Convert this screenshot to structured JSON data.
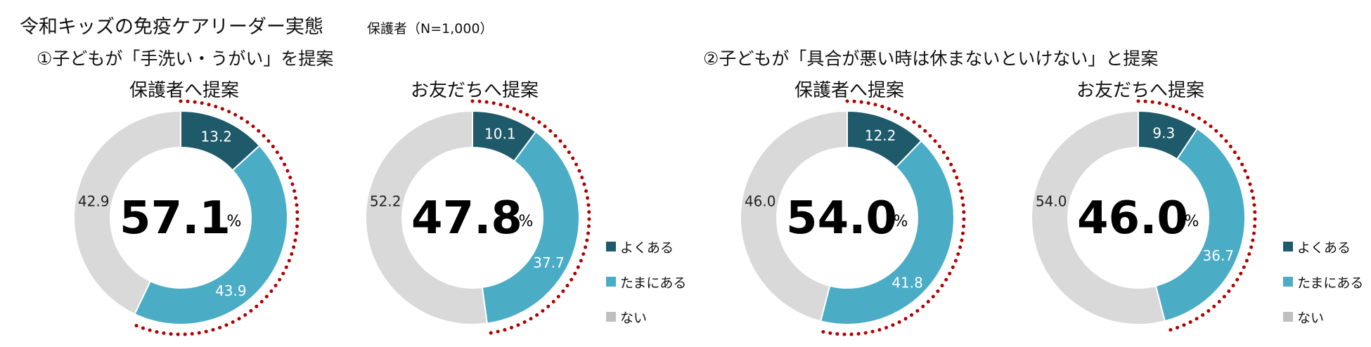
{
  "header": {
    "title": "令和キッズの免疫ケアリーダー実態",
    "sample": "保護者（N=1,000）"
  },
  "sections": [
    {
      "title": "①子どもが「手洗い・うがい」を提案"
    },
    {
      "title": "②子どもが「具合が悪い時は休まないといけない」と提案"
    }
  ],
  "donut_titles": [
    "保護者へ提案",
    "お友だちへ提案",
    "保護者へ提案",
    "お友だちへ提案"
  ],
  "legend": [
    {
      "label": "よくある",
      "color": "#1F5A6B"
    },
    {
      "label": "たまにある",
      "color": "#4BACC6"
    },
    {
      "label": "ない",
      "color": "#BFBFBF"
    }
  ],
  "colors": {
    "often": "#1F5A6B",
    "sometimes": "#4BACC6",
    "never": "#D9D9D9",
    "highlight": "#B00000"
  },
  "chart_data": [
    {
      "type": "pie",
      "title": "①子どもが「手洗い・うがい」を提案 — 保護者へ提案",
      "categories": [
        "よくある",
        "たまにある",
        "ない"
      ],
      "values": [
        13.2,
        43.9,
        42.9
      ],
      "center_label": "57.1",
      "center_unit": "%"
    },
    {
      "type": "pie",
      "title": "①子どもが「手洗い・うがい」を提案 — お友だちへ提案",
      "categories": [
        "よくある",
        "たまにある",
        "ない"
      ],
      "values": [
        10.1,
        37.7,
        52.2
      ],
      "center_label": "47.8",
      "center_unit": "%"
    },
    {
      "type": "pie",
      "title": "②子どもが「具合が悪い時は休まないといけない」と提案 — 保護者へ提案",
      "categories": [
        "よくある",
        "たまにある",
        "ない"
      ],
      "values": [
        12.2,
        41.8,
        46.0
      ],
      "center_label": "54.0",
      "center_unit": "%"
    },
    {
      "type": "pie",
      "title": "②子どもが「具合が悪い時は休まないといけない」と提案 — お友だちへ提案",
      "categories": [
        "よくある",
        "たまにある",
        "ない"
      ],
      "values": [
        9.3,
        36.7,
        54.0
      ],
      "center_label": "46.0",
      "center_unit": "%"
    }
  ]
}
